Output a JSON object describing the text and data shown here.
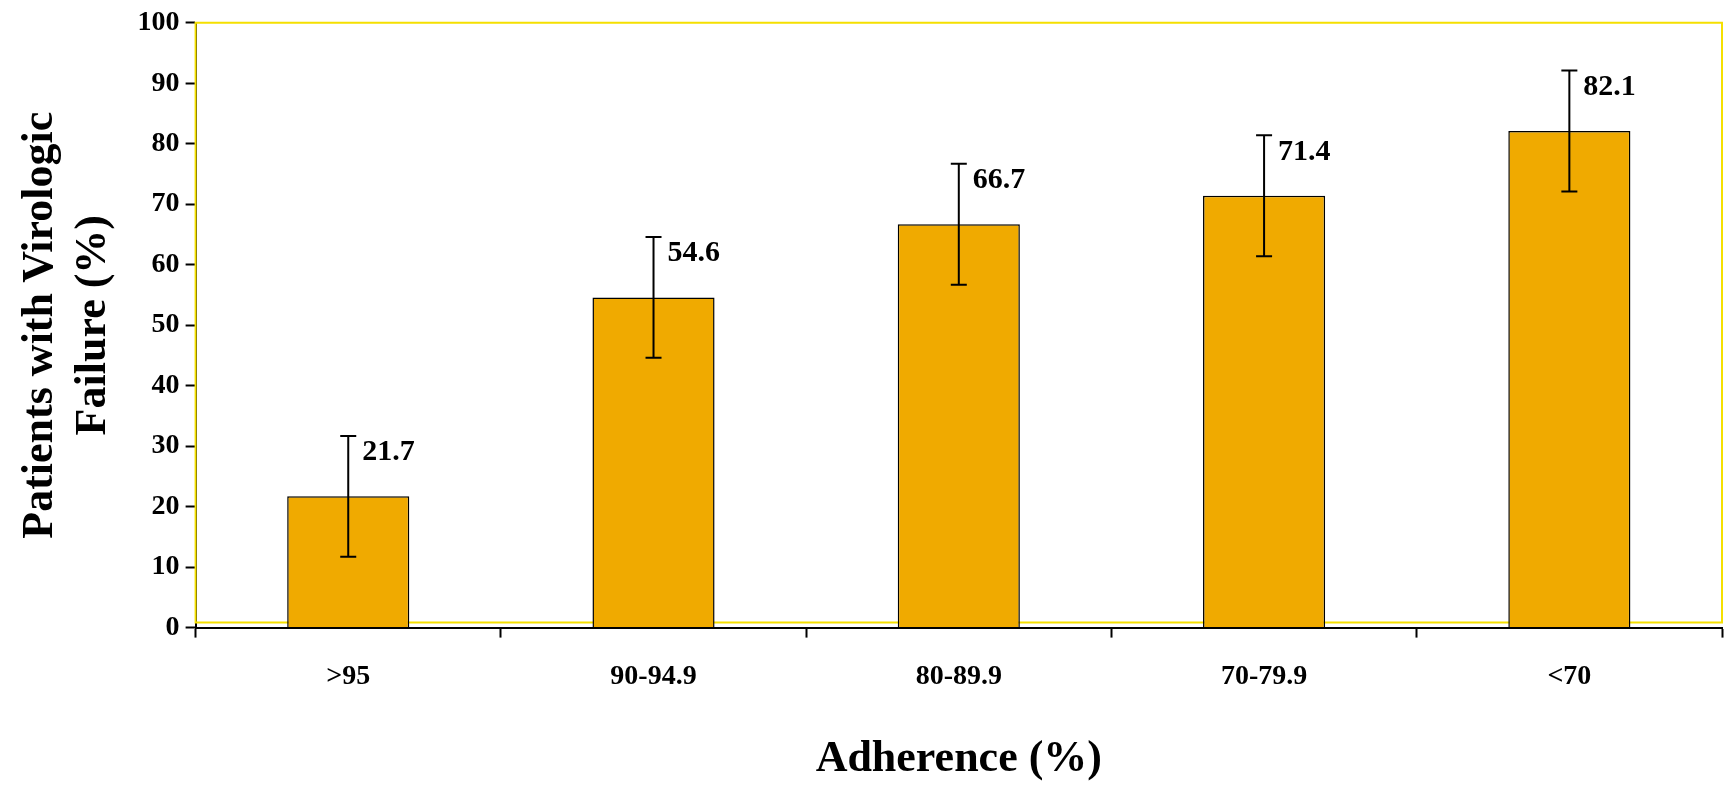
{
  "chart_data": {
    "type": "bar",
    "xlabel": "Adherence (%)",
    "ylabel": "Patients with Virologic Failure (%)",
    "categories": [
      ">95",
      "90-94.9",
      "80-89.9",
      "70-79.9",
      "<70"
    ],
    "values": [
      21.7,
      54.6,
      66.7,
      71.4,
      82.1
    ],
    "errors": [
      10,
      10,
      10,
      10,
      10
    ],
    "color": "#f0aa00",
    "data_labels": true,
    "ylim": [
      0,
      100
    ],
    "yticks": [
      0,
      10,
      20,
      30,
      40,
      50,
      60,
      70,
      80,
      90,
      100
    ],
    "grid": false,
    "legend": false
  }
}
